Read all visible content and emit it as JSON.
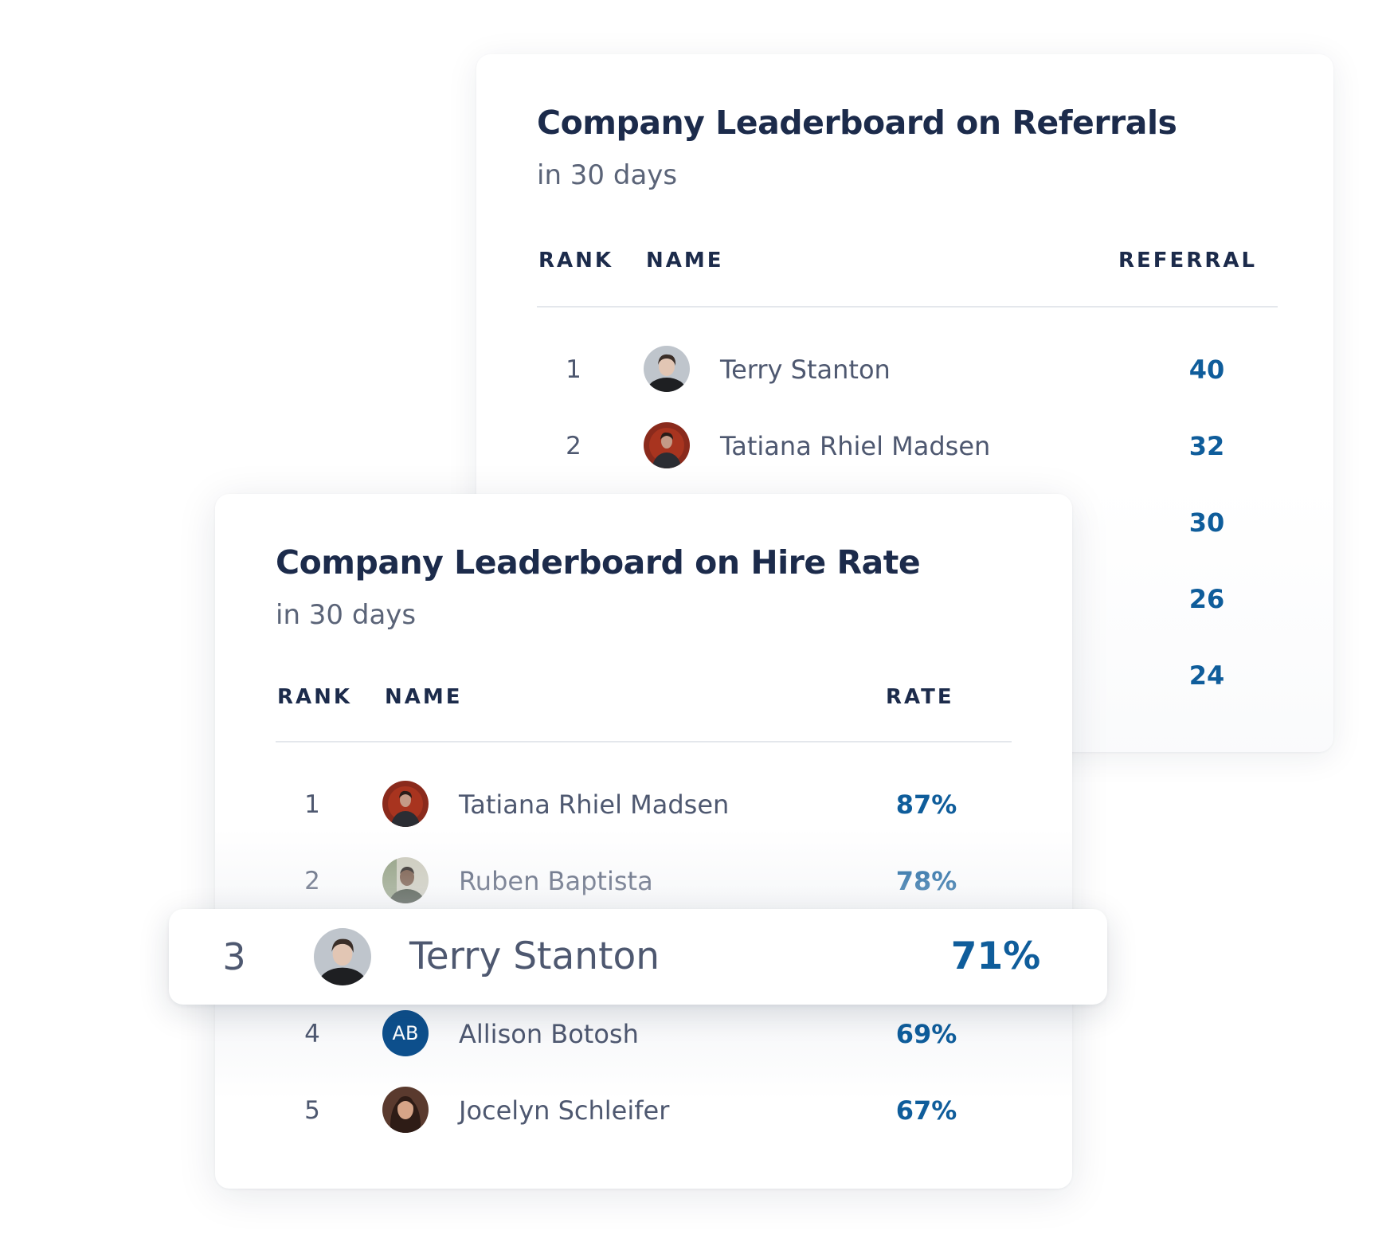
{
  "referrals_board": {
    "title": "Company Leaderboard on Referrals",
    "subtitle": "in 30 days",
    "columns": {
      "rank": "RANK",
      "name": "NAME",
      "value": "REFERRAL"
    },
    "rows": [
      {
        "rank": "1",
        "name": "Terry Stanton",
        "value": "40",
        "avatar": "photo-terry"
      },
      {
        "rank": "2",
        "name": "Tatiana Rhiel Madsen",
        "value": "32",
        "avatar": "photo-tatiana"
      },
      {
        "rank": "",
        "name": "",
        "value": "30",
        "avatar": ""
      },
      {
        "rank": "",
        "name": "",
        "value": "26",
        "avatar": ""
      },
      {
        "rank": "",
        "name": "",
        "value": "24",
        "avatar": ""
      }
    ]
  },
  "hire_rate_board": {
    "title": "Company Leaderboard on Hire Rate",
    "subtitle": "in 30 days",
    "columns": {
      "rank": "RANK",
      "name": "NAME",
      "value": "RATE"
    },
    "rows": [
      {
        "rank": "1",
        "name": "Tatiana Rhiel Madsen",
        "value": "87%",
        "avatar": "photo-tatiana"
      },
      {
        "rank": "2",
        "name": "Ruben Baptista",
        "value": "78%",
        "avatar": "photo-ruben"
      },
      {
        "rank": "3",
        "name": "Terry Stanton",
        "value": "71%",
        "avatar": "photo-terry",
        "highlighted": true
      },
      {
        "rank": "4",
        "name": "Allison Botosh",
        "value": "69%",
        "avatar": "initials",
        "initials": "AB"
      },
      {
        "rank": "5",
        "name": "Jocelyn Schleifer",
        "value": "67%",
        "avatar": "photo-jocelyn"
      }
    ]
  },
  "colors": {
    "title": "#1c2b4b",
    "text": "#4e5870",
    "value": "#0f5d9b",
    "initials_bg": "#0d4f8c",
    "divider": "#e4e7ec"
  }
}
